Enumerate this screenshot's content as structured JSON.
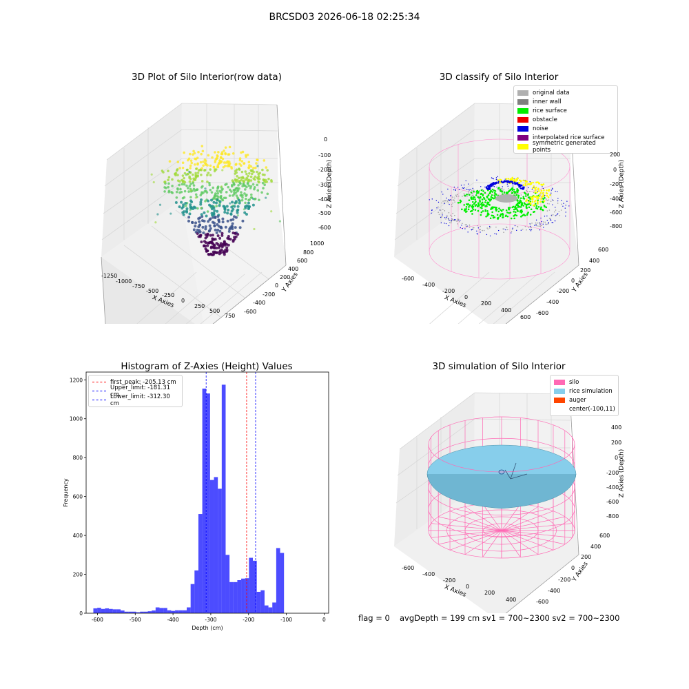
{
  "suptitle": "BRCSD03 2026-06-18 02:25:34",
  "panels": {
    "raw": {
      "title": "3D Plot of Silo Interior(row data)",
      "xlabel": "X Axies",
      "ylabel": "Y Axies",
      "zlabel": "Z Axies (Depth)",
      "xticks": [
        "-1250",
        "-1000",
        "-750",
        "-500",
        "-250",
        "0",
        "250",
        "500",
        "750"
      ],
      "yticks": [
        "1000",
        "800",
        "600",
        "400",
        "200",
        "0",
        "-200",
        "-400",
        "-600"
      ],
      "zticks": [
        "0",
        "-100",
        "-200",
        "-300",
        "-400",
        "-500",
        "-600"
      ]
    },
    "classify": {
      "title": "3D classify of Silo Interior",
      "xlabel": "X Axies",
      "ylabel": "Y Axies",
      "zlabel": "Z Axies (Depth)",
      "xticks": [
        "-600",
        "-400",
        "-200",
        "0",
        "200",
        "400",
        "600"
      ],
      "yticks": [
        "600",
        "400",
        "200",
        "0",
        "-200",
        "-400",
        "-600"
      ],
      "zticks": [
        "200",
        "0",
        "-200",
        "-400",
        "-600",
        "-800"
      ],
      "legend": [
        {
          "label": "original data",
          "color": "#b0b0b0"
        },
        {
          "label": "inner wall",
          "color": "#808080"
        },
        {
          "label": "rice surface",
          "color": "#00ee00"
        },
        {
          "label": "obstacle",
          "color": "#ee0000"
        },
        {
          "label": "noise",
          "color": "#0000dd"
        },
        {
          "label": "interpolated rice surface",
          "color": "#800080"
        },
        {
          "label": "symmetric generated points",
          "color": "#ffff00"
        }
      ]
    },
    "simulation": {
      "title": "3D simulation of Silo Interior",
      "xlabel": "X Axies",
      "ylabel": "Y Axies",
      "zlabel": "Z Axies (Depth)",
      "xticks": [
        "-600",
        "-400",
        "-200",
        "0",
        "200",
        "400"
      ],
      "yticks": [
        "600",
        "400",
        "200",
        "0",
        "-200",
        "-400",
        "-600"
      ],
      "zticks": [
        "400",
        "200",
        "0",
        "-200",
        "-400",
        "-600",
        "-800"
      ],
      "legend": [
        {
          "label": "silo",
          "color": "#ff69b4"
        },
        {
          "label": "rice simulation",
          "color": "#87ceeb"
        },
        {
          "label": "auger",
          "color": "#ff4500"
        },
        {
          "label": "center(-100,11)",
          "color": ""
        }
      ]
    }
  },
  "footer": {
    "flag": "flag = 0",
    "stats": "avgDepth = 199 cm  sv1 = 700~2300  sv2 = 700~2300"
  },
  "chart_data": {
    "type": "bar",
    "title": "Histogram of Z-Axies (Height) Values",
    "xlabel": "Depth (cm)",
    "ylabel": "Frequency",
    "xlim": [
      -630,
      12
    ],
    "ylim": [
      0,
      1240
    ],
    "xticks": [
      -600,
      -500,
      -400,
      -300,
      -200,
      -100,
      0
    ],
    "yticks": [
      0,
      200,
      400,
      600,
      800,
      1000,
      1200
    ],
    "bar_color": "#0000ff",
    "bin_width": 10.3,
    "bins": [
      [
        -610.9,
        25
      ],
      [
        -600.6,
        28
      ],
      [
        -590.3,
        22
      ],
      [
        -580.0,
        25
      ],
      [
        -569.7,
        22
      ],
      [
        -559.4,
        20
      ],
      [
        -549.1,
        20
      ],
      [
        -538.8,
        14
      ],
      [
        -528.5,
        8
      ],
      [
        -518.2,
        8
      ],
      [
        -507.9,
        8
      ],
      [
        -497.6,
        5
      ],
      [
        -487.3,
        8
      ],
      [
        -477.0,
        8
      ],
      [
        -466.7,
        10
      ],
      [
        -456.4,
        14
      ],
      [
        -446.1,
        30
      ],
      [
        -435.8,
        27
      ],
      [
        -425.5,
        27
      ],
      [
        -415.2,
        15
      ],
      [
        -404.9,
        12
      ],
      [
        -394.6,
        15
      ],
      [
        -384.3,
        15
      ],
      [
        -374.0,
        15
      ],
      [
        -363.7,
        30
      ],
      [
        -353.4,
        150
      ],
      [
        -343.1,
        220
      ],
      [
        -332.8,
        510
      ],
      [
        -322.5,
        1155
      ],
      [
        -312.2,
        1130
      ],
      [
        -301.9,
        685
      ],
      [
        -291.6,
        700
      ],
      [
        -281.3,
        640
      ],
      [
        -271.0,
        1175
      ],
      [
        -260.7,
        300
      ],
      [
        -250.4,
        160
      ],
      [
        -240.1,
        160
      ],
      [
        -229.8,
        170
      ],
      [
        -219.5,
        178
      ],
      [
        -209.2,
        180
      ],
      [
        -198.9,
        285
      ],
      [
        -188.6,
        270
      ],
      [
        -178.3,
        110
      ],
      [
        -168.0,
        118
      ],
      [
        -157.7,
        40
      ],
      [
        -147.4,
        30
      ],
      [
        -137.1,
        55
      ],
      [
        -126.8,
        335
      ],
      [
        -116.5,
        310
      ]
    ],
    "lines": [
      {
        "label": "first_peak: -205.13 cm",
        "x": -205.13,
        "color": "#ff0000"
      },
      {
        "label": "Upper_limit: -181.31 cm",
        "x": -181.31,
        "color": "#0000ff"
      },
      {
        "label": "Lower_limit: -312.30 cm",
        "x": -312.3,
        "color": "#0000ff"
      }
    ]
  }
}
